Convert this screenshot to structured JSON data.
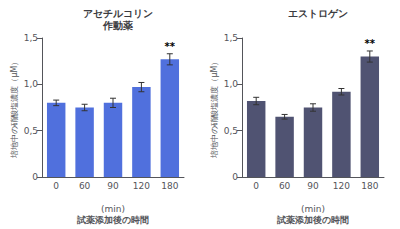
{
  "chart_data": [
    {
      "type": "bar",
      "title": "アセチルコリン\n作動薬",
      "categories": [
        "0",
        "60",
        "90",
        "120",
        "180"
      ],
      "values": [
        0.8,
        0.75,
        0.8,
        0.97,
        1.27
      ],
      "errors": [
        0.03,
        0.035,
        0.05,
        0.05,
        0.06
      ],
      "annotations": [
        {
          "text": "**",
          "category": "180"
        }
      ],
      "xlabel": "(min)\n試薬添加後の時間",
      "ylabel": "培地中の硝酸塩濃度（μM）",
      "ylim": [
        0,
        1.5
      ],
      "yticks": [
        0,
        {
          "value": 0.5,
          "label": "0,5"
        },
        {
          "value": 1.0,
          "label": "1,0"
        },
        {
          "value": 1.5,
          "label": "1,5"
        }
      ],
      "grid": false
    },
    {
      "type": "bar",
      "title": "エストロゲン",
      "categories": [
        "0",
        "60",
        "90",
        "120",
        "180"
      ],
      "values": [
        0.82,
        0.65,
        0.75,
        0.92,
        1.3
      ],
      "errors": [
        0.04,
        0.025,
        0.04,
        0.035,
        0.06
      ],
      "annotations": [
        {
          "text": "**",
          "category": "180"
        }
      ],
      "xlabel": "(min)\n試薬添加後の時間",
      "ylabel": "培地中の硝酸塩濃度（μM）",
      "ylim": [
        0,
        1.5
      ],
      "yticks": [
        0,
        {
          "value": 0.5,
          "label": "0,5"
        },
        {
          "value": 1.0,
          "label": "1,0"
        },
        {
          "value": 1.5,
          "label": "1,5"
        }
      ],
      "grid": false
    }
  ]
}
